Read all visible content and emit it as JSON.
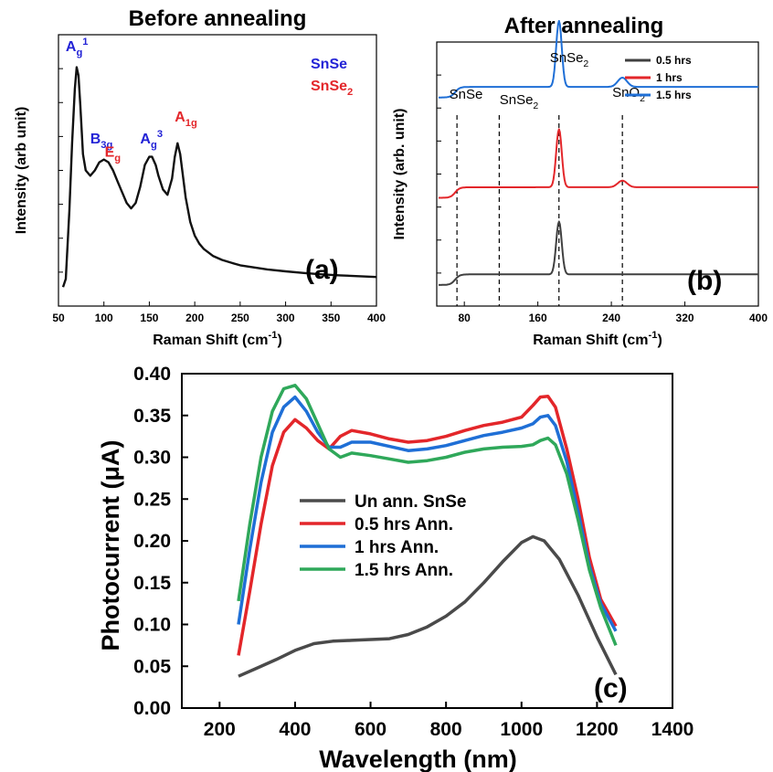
{
  "chart_data": [
    {
      "panel": "a",
      "type": "line",
      "title": "Before annealing",
      "xlabel": "Raman Shift (cm",
      "xlabel_sup": "-1",
      "xlabel_end": ")",
      "ylabel": "Intensity (arb unit)",
      "xlim": [
        50,
        400
      ],
      "ylim": [
        0,
        1
      ],
      "xticks": [
        50,
        100,
        150,
        200,
        250,
        300,
        350,
        400
      ],
      "panel_label": "(a)",
      "legend": [
        {
          "text": "SnSe",
          "color": "#2323d6"
        },
        {
          "text": "SnSe",
          "sub": "2",
          "color": "#e3262a"
        }
      ],
      "annotations": [
        {
          "base": "A",
          "sub": "g",
          "sup": "1",
          "color": "#2323d6",
          "x": 70,
          "y": 0.94
        },
        {
          "base": "B",
          "sub": "3g",
          "sup": "",
          "color": "#2323d6",
          "x": 97,
          "y": 0.6
        },
        {
          "base": "E",
          "sub": "g",
          "sup": "",
          "color": "#e3262a",
          "x": 113,
          "y": 0.55
        },
        {
          "base": "A",
          "sub": "g",
          "sup": "3",
          "color": "#2323d6",
          "x": 152,
          "y": 0.6
        },
        {
          "base": "A",
          "sub": "1g",
          "sup": "",
          "color": "#e3262a",
          "x": 190,
          "y": 0.68
        }
      ],
      "series": [
        {
          "color": "#111111",
          "x": [
            55,
            58,
            62,
            65,
            68,
            70,
            72,
            74,
            77,
            80,
            85,
            90,
            95,
            100,
            105,
            110,
            115,
            120,
            125,
            130,
            135,
            140,
            145,
            150,
            153,
            157,
            160,
            165,
            170,
            175,
            178,
            181,
            184,
            187,
            190,
            195,
            200,
            205,
            210,
            220,
            230,
            240,
            250,
            260,
            280,
            300,
            320,
            340,
            360,
            380,
            400
          ],
          "y": [
            0.07,
            0.1,
            0.35,
            0.6,
            0.8,
            0.88,
            0.85,
            0.74,
            0.56,
            0.5,
            0.48,
            0.5,
            0.53,
            0.54,
            0.53,
            0.5,
            0.46,
            0.42,
            0.38,
            0.36,
            0.38,
            0.44,
            0.52,
            0.55,
            0.55,
            0.52,
            0.48,
            0.43,
            0.41,
            0.47,
            0.55,
            0.6,
            0.56,
            0.48,
            0.4,
            0.31,
            0.26,
            0.23,
            0.21,
            0.185,
            0.17,
            0.16,
            0.15,
            0.145,
            0.135,
            0.128,
            0.122,
            0.117,
            0.113,
            0.11,
            0.107
          ]
        }
      ]
    },
    {
      "panel": "b",
      "type": "line",
      "title": "After annealing",
      "xlabel": "Raman Shift (cm",
      "xlabel_sup": "-1",
      "xlabel_end": ")",
      "ylabel": "Intensity (arb. unit)",
      "xlim": [
        50,
        400
      ],
      "ylim": [
        0,
        1
      ],
      "xticks": [
        80,
        160,
        240,
        320,
        400
      ],
      "panel_label": "(b)",
      "peak_labels": [
        {
          "text": "SnSe",
          "sub": "",
          "x": 72
        },
        {
          "text": "SnSe",
          "sub": "2",
          "x": 118
        },
        {
          "text": "SnSe",
          "sub": "2",
          "x": 183
        },
        {
          "text": "SnO",
          "sub": "2",
          "x": 252
        }
      ],
      "dashed_lines": [
        72,
        118,
        183,
        252
      ],
      "series": [
        {
          "name": "0.5 hrs",
          "color": "#404040",
          "baseline": 0.12,
          "step": 0.04,
          "peaks": [
            {
              "x": 183,
              "h": 0.2,
              "w": 3
            },
            {
              "x": 252,
              "h": 0.0,
              "w": 5
            }
          ]
        },
        {
          "name": "1    hrs",
          "color": "#e3262a",
          "baseline": 0.45,
          "step": 0.04,
          "peaks": [
            {
              "x": 183,
              "h": 0.22,
              "w": 3
            },
            {
              "x": 252,
              "h": 0.025,
              "w": 5
            }
          ]
        },
        {
          "name": "1.5 hrs",
          "color": "#1f6fd6",
          "baseline": 0.83,
          "step": 0.04,
          "peaks": [
            {
              "x": 183,
              "h": 0.25,
              "w": 3
            },
            {
              "x": 252,
              "h": 0.035,
              "w": 5
            }
          ]
        }
      ]
    },
    {
      "panel": "c",
      "type": "line",
      "title": "",
      "xlabel": "Wavelength (nm)",
      "ylabel": "Photocurrent (μA)",
      "xlim": [
        100,
        1400
      ],
      "ylim": [
        0.0,
        0.4
      ],
      "xticks": [
        200,
        400,
        600,
        800,
        1000,
        1200,
        1400
      ],
      "yticks": [
        "0.00",
        "0.05",
        "0.10",
        "0.15",
        "0.20",
        "0.25",
        "0.30",
        "0.35",
        "0.40"
      ],
      "panel_label": "(c)",
      "series": [
        {
          "name": "Un ann. SnSe",
          "color": "#4a4a4a",
          "x": [
            250,
            300,
            350,
            400,
            450,
            500,
            550,
            600,
            650,
            700,
            750,
            800,
            850,
            900,
            950,
            1000,
            1030,
            1060,
            1100,
            1150,
            1200,
            1250
          ],
          "y": [
            0.038,
            0.048,
            0.058,
            0.069,
            0.077,
            0.08,
            0.081,
            0.082,
            0.083,
            0.088,
            0.097,
            0.11,
            0.127,
            0.15,
            0.175,
            0.198,
            0.205,
            0.2,
            0.178,
            0.135,
            0.085,
            0.04
          ]
        },
        {
          "name": "0.5 hrs Ann.",
          "color": "#e3262a",
          "x": [
            250,
            280,
            310,
            340,
            370,
            400,
            430,
            460,
            490,
            520,
            550,
            600,
            650,
            700,
            750,
            800,
            850,
            900,
            950,
            1000,
            1030,
            1050,
            1070,
            1090,
            1120,
            1150,
            1180,
            1210,
            1250
          ],
          "y": [
            0.063,
            0.14,
            0.22,
            0.29,
            0.33,
            0.345,
            0.335,
            0.32,
            0.31,
            0.325,
            0.332,
            0.328,
            0.322,
            0.318,
            0.32,
            0.325,
            0.332,
            0.338,
            0.342,
            0.348,
            0.362,
            0.372,
            0.373,
            0.36,
            0.31,
            0.25,
            0.18,
            0.13,
            0.098
          ]
        },
        {
          "name": "1 hrs Ann.",
          "color": "#1f6fd6",
          "x": [
            250,
            280,
            310,
            340,
            370,
            400,
            430,
            460,
            490,
            520,
            550,
            600,
            650,
            700,
            750,
            800,
            850,
            900,
            950,
            1000,
            1030,
            1050,
            1070,
            1090,
            1120,
            1150,
            1180,
            1210,
            1250
          ],
          "y": [
            0.1,
            0.19,
            0.27,
            0.33,
            0.36,
            0.372,
            0.355,
            0.33,
            0.312,
            0.312,
            0.318,
            0.318,
            0.313,
            0.308,
            0.31,
            0.314,
            0.32,
            0.326,
            0.33,
            0.335,
            0.34,
            0.348,
            0.35,
            0.338,
            0.295,
            0.235,
            0.17,
            0.125,
            0.092
          ]
        },
        {
          "name": "1.5 hrs Ann.",
          "color": "#2fa85a",
          "x": [
            250,
            280,
            310,
            340,
            370,
            400,
            430,
            460,
            490,
            520,
            550,
            600,
            650,
            700,
            750,
            800,
            850,
            900,
            950,
            1000,
            1030,
            1050,
            1070,
            1090,
            1120,
            1150,
            1180,
            1210,
            1250
          ],
          "y": [
            0.128,
            0.22,
            0.3,
            0.355,
            0.382,
            0.386,
            0.37,
            0.34,
            0.31,
            0.3,
            0.305,
            0.302,
            0.298,
            0.294,
            0.296,
            0.3,
            0.306,
            0.31,
            0.312,
            0.313,
            0.315,
            0.32,
            0.323,
            0.315,
            0.28,
            0.225,
            0.165,
            0.12,
            0.075
          ]
        }
      ]
    }
  ]
}
